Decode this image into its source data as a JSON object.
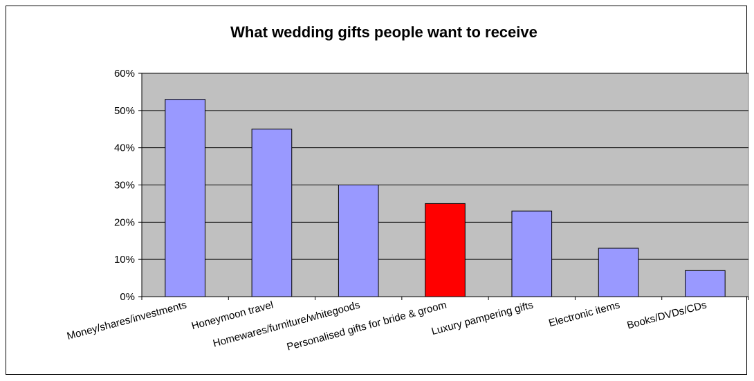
{
  "chart_data": {
    "type": "bar",
    "title": "What wedding gifts people want to receive",
    "xlabel": "",
    "ylabel": "",
    "categories": [
      "Money/shares/investments",
      "Honeymoon travel",
      "Homewares/furniture/whitegoods",
      "Personalised gifts for bride & groom",
      "Luxury pampering gifts",
      "Electronic items",
      "Books/DVDs/CDs"
    ],
    "values": [
      53,
      45,
      30,
      25,
      23,
      13,
      7
    ],
    "ylim": [
      0,
      60
    ],
    "yticks": [
      0,
      10,
      20,
      30,
      40,
      50,
      60
    ],
    "ytick_labels": [
      "0%",
      "10%",
      "20%",
      "30%",
      "40%",
      "50%",
      "60%"
    ],
    "grid": true,
    "legend": "none",
    "colors": {
      "bar": "#9999ff",
      "highlight_bar": "#ff0000",
      "highlight_index": 3,
      "plot_background": "#c0c0c0"
    }
  }
}
